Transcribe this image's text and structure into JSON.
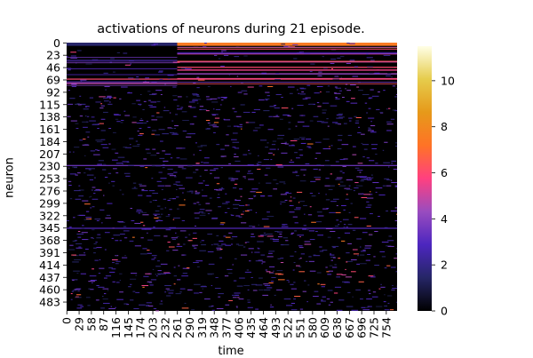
{
  "chart_data": {
    "type": "heatmap",
    "title": "activations of neurons during 21 episode.",
    "xlabel": "time",
    "ylabel": "neuron",
    "n_rows": 500,
    "n_cols": 780,
    "row_ticks": [
      0,
      23,
      46,
      69,
      92,
      115,
      138,
      161,
      184,
      207,
      230,
      253,
      276,
      299,
      322,
      345,
      368,
      391,
      414,
      437,
      460,
      483
    ],
    "col_ticks": [
      0,
      29,
      58,
      87,
      116,
      145,
      174,
      203,
      232,
      261,
      290,
      319,
      348,
      377,
      406,
      435,
      464,
      493,
      522,
      551,
      580,
      609,
      638,
      667,
      696,
      725,
      754
    ],
    "colorbar": {
      "min": 0,
      "max": 11.5,
      "ticks": [
        0,
        2,
        4,
        6,
        8,
        10
      ],
      "colormap": "CMRmap",
      "stops": [
        "#000000",
        "#262666",
        "#4c26bf",
        "#994cbf",
        "#ff4080",
        "#ff7326",
        "#e6991a",
        "#e6cc4c",
        "#ffffe6"
      ]
    },
    "highlights": [
      {
        "rows": [
          0,
          6
        ],
        "cols": [
          0,
          261
        ],
        "level": 1.5
      },
      {
        "rows": [
          0,
          6
        ],
        "cols": [
          261,
          780
        ],
        "level": 7.5
      },
      {
        "rows": [
          20,
          22
        ],
        "cols": [
          261,
          780
        ],
        "level": 5.5
      },
      {
        "rows": [
          34,
          37
        ],
        "cols": [
          261,
          780
        ],
        "level": 5
      },
      {
        "rows": [
          45,
          47
        ],
        "cols": [
          261,
          780
        ],
        "level": 6
      },
      {
        "rows": [
          57,
          59
        ],
        "cols": [
          261,
          780
        ],
        "level": 4.5
      },
      {
        "rows": [
          67,
          69
        ],
        "cols": [
          0,
          780
        ],
        "level": 6
      },
      {
        "rows": [
          75,
          77
        ],
        "cols": [
          0,
          261
        ],
        "level": 5
      },
      {
        "rows": [
          228,
          230
        ],
        "cols": [
          0,
          780
        ],
        "level": 3.5
      },
      {
        "rows": [
          345,
          346
        ],
        "cols": [
          0,
          780
        ],
        "level": 3
      }
    ]
  }
}
